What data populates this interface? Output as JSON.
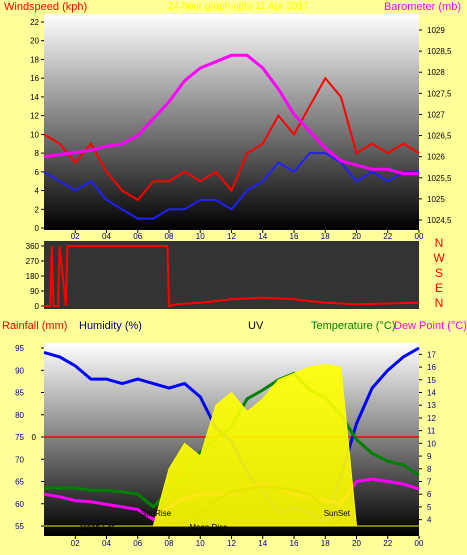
{
  "chart_data": [
    {
      "type": "line",
      "panel": "wind-pressure",
      "title": "24 hour graph upto 11 Apr 2017",
      "ylabel_left": "Windspeed (kph)",
      "ylabel_right": "Barometer (mb)",
      "ylim_left": [
        0,
        22
      ],
      "ylim_right": [
        1024.5,
        1029
      ],
      "x_ticks": [
        "02",
        "04",
        "06",
        "08",
        "10",
        "12",
        "14",
        "16",
        "18",
        "20",
        "22",
        "00"
      ],
      "left_ticks": [
        "22",
        "20",
        "18",
        "16",
        "14",
        "12",
        "10",
        "8",
        "6",
        "4",
        "2",
        "0"
      ],
      "right_ticks": [
        "1029",
        "1028,5",
        "1028",
        "1027,5",
        "1027",
        "1026,5",
        "1026",
        "1025,5",
        "1025",
        "1024,5"
      ],
      "x": [
        0,
        1,
        2,
        3,
        4,
        5,
        6,
        7,
        8,
        9,
        10,
        11,
        12,
        13,
        14,
        15,
        16,
        17,
        18,
        19,
        20,
        21,
        22,
        23,
        24
      ],
      "series": [
        {
          "name": "",
          "axis": "left",
          "color": "#ff0000",
          "values": [
            10,
            9,
            7,
            9,
            6,
            4,
            3,
            5,
            5,
            6,
            5,
            6,
            4,
            8,
            9,
            12,
            10,
            13,
            16,
            14,
            8,
            9,
            8,
            9,
            8
          ]
        },
        {
          "name": "",
          "axis": "left",
          "color": "#2020ff",
          "values": [
            6,
            5,
            4,
            5,
            3,
            2,
            1,
            1,
            2,
            2,
            3,
            3,
            2,
            4,
            5,
            7,
            6,
            8,
            8,
            7,
            5,
            6,
            5,
            6,
            6
          ]
        },
        {
          "name": "",
          "axis": "right",
          "color": "#ff00ff",
          "values": [
            1026.0,
            1026.05,
            1026.1,
            1026.15,
            1026.25,
            1026.3,
            1026.5,
            1026.9,
            1027.3,
            1027.8,
            1028.1,
            1028.25,
            1028.4,
            1028.4,
            1028.1,
            1027.6,
            1027.0,
            1026.6,
            1026.2,
            1025.9,
            1025.8,
            1025.7,
            1025.7,
            1025.6,
            1025.6
          ]
        }
      ]
    },
    {
      "type": "line",
      "panel": "wind-direction",
      "ylim": [
        0,
        360
      ],
      "left_ticks": [
        "360",
        "270",
        "180",
        "90",
        "0"
      ],
      "right_labels": [
        "N",
        "W",
        "S",
        "E",
        "N"
      ],
      "x": [
        0,
        0.4,
        0.5,
        0.6,
        0.9,
        1.0,
        1.4,
        1.5,
        2.0,
        4,
        6,
        7.9,
        8.0,
        8.5,
        10,
        12,
        14,
        16,
        18,
        20,
        22,
        24
      ],
      "series": [
        {
          "name": "",
          "color": "#ff0000",
          "values": [
            0,
            0,
            360,
            0,
            0,
            360,
            0,
            360,
            360,
            360,
            360,
            360,
            0,
            10,
            20,
            40,
            50,
            40,
            20,
            10,
            15,
            20
          ]
        }
      ]
    },
    {
      "type": "line",
      "panel": "temp-humidity-uv",
      "header_labels": {
        "rain": "Rainfall (mm)",
        "humidity": "Humidity (%)",
        "uv": "UV",
        "temp": "Temperature (°C)",
        "dew": "Dew Point (°C)"
      },
      "ylim_humidity": [
        55,
        95
      ],
      "ylim_temp": [
        3.5,
        17.5
      ],
      "rain_zero_label": "0",
      "humidity_ticks": [
        "95",
        "90",
        "85",
        "80",
        "75",
        "70",
        "65",
        "60",
        "55"
      ],
      "temp_ticks": [
        "17",
        "16",
        "15",
        "14",
        "13",
        "12",
        "11",
        "10",
        "9",
        "8",
        "7",
        "6",
        "5",
        "4"
      ],
      "annotations": {
        "moon_set": "Moon Set",
        "sunrise": "SunRise",
        "moon_rise": "Moon Rise",
        "sunset": "SunSet"
      },
      "x": [
        0,
        1,
        2,
        3,
        4,
        5,
        6,
        7,
        8,
        9,
        10,
        11,
        12,
        13,
        14,
        15,
        16,
        17,
        18,
        19,
        20,
        21,
        22,
        23,
        24
      ],
      "series": [
        {
          "name": "",
          "color": "#0000ff",
          "axis": "humidity",
          "values": [
            94,
            93,
            91,
            88,
            88,
            87,
            88,
            87,
            86,
            87,
            84,
            77,
            74,
            67,
            63,
            58,
            59,
            58,
            56,
            66,
            78,
            86,
            90,
            93,
            95
          ]
        },
        {
          "name": "",
          "color": "#008000",
          "axis": "temp",
          "values": [
            6.5,
            6.5,
            6.5,
            6.3,
            6.3,
            6.2,
            6.0,
            5.0,
            6.3,
            7.4,
            9.3,
            10.4,
            11.3,
            13.5,
            14.2,
            15.0,
            15.5,
            14.2,
            13.6,
            12.2,
            10.3,
            9.2,
            8.6,
            8.3,
            7.5
          ]
        },
        {
          "name": "",
          "color": "#ff00ff",
          "axis": "temp",
          "values": [
            6.0,
            5.8,
            5.5,
            5.4,
            5.2,
            5.0,
            4.8,
            4.0,
            5.0,
            5.7,
            6.0,
            6.0,
            6.0,
            6.5,
            6.8,
            6.5,
            6.0,
            5.8,
            5.5,
            5.2,
            7.0,
            7.2,
            7.0,
            6.8,
            6.4
          ]
        },
        {
          "name": "",
          "color": "#000000",
          "axis": "temp",
          "values": [
            3.5,
            3.5,
            3.5,
            3.5,
            3.5,
            3.5,
            3.5,
            3.5,
            3.5,
            3.8,
            4.6,
            5.5,
            6.2,
            6.4,
            6.6,
            6.5,
            6.3,
            6.0,
            5.0,
            3.5,
            3.5,
            3.5,
            3.5,
            3.5,
            3.5
          ]
        },
        {
          "name": "",
          "color": "#ffff00",
          "axis": "temp",
          "type": "area",
          "values": [
            0,
            0,
            0,
            0,
            0,
            0,
            0,
            0,
            8.0,
            10.0,
            9.0,
            13.0,
            14.0,
            12.5,
            13.5,
            15.0,
            15.5,
            16.0,
            16.2,
            16.0,
            0,
            0,
            0,
            0,
            0
          ]
        }
      ]
    }
  ]
}
